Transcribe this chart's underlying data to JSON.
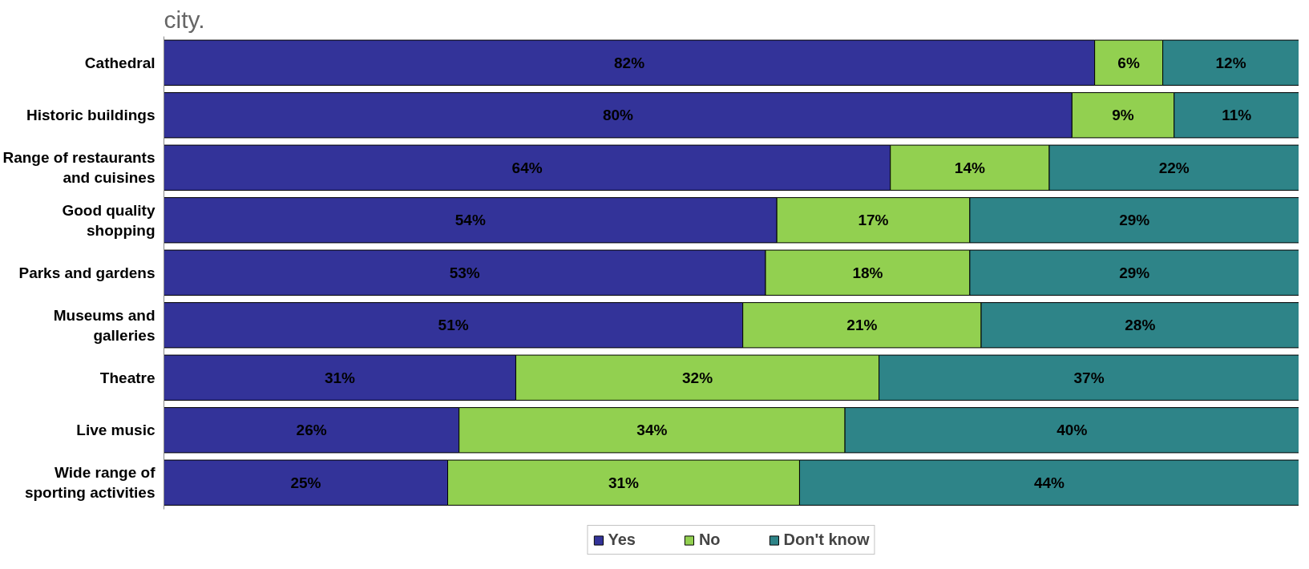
{
  "chart_data": {
    "type": "bar",
    "orientation": "horizontal",
    "stacked": true,
    "legend": "bottom",
    "grid": false,
    "annotations": [
      "city."
    ],
    "categories": [
      "Cathedral",
      "Historic buildings",
      "Range of restaurants and cuisines",
      "Good quality shopping",
      "Parks and gardens",
      "Museums and galleries",
      "Theatre",
      "Live music",
      "Wide range of sporting activities"
    ],
    "series": [
      {
        "name": "Yes",
        "color": "#333399",
        "values": [
          82,
          80,
          64,
          54,
          53,
          51,
          31,
          26,
          25
        ],
        "value_labels": [
          "82%",
          "80%",
          "64%",
          "54%",
          "53%",
          "51%",
          "31%",
          "26%",
          "25%"
        ]
      },
      {
        "name": "No",
        "color": "#92d050",
        "values": [
          6,
          9,
          14,
          17,
          18,
          21,
          32,
          34,
          31
        ],
        "value_labels": [
          "6%",
          "9%",
          "14%",
          "17%",
          "18%",
          "21%",
          "32%",
          "34%",
          "31%"
        ]
      },
      {
        "name": "Don't know",
        "color": "#2e8488",
        "values": [
          12,
          11,
          22,
          29,
          29,
          28,
          37,
          40,
          44
        ],
        "value_labels": [
          "12%",
          "11%",
          "22%",
          "29%",
          "29%",
          "28%",
          "37%",
          "40%",
          "44%"
        ]
      }
    ]
  }
}
